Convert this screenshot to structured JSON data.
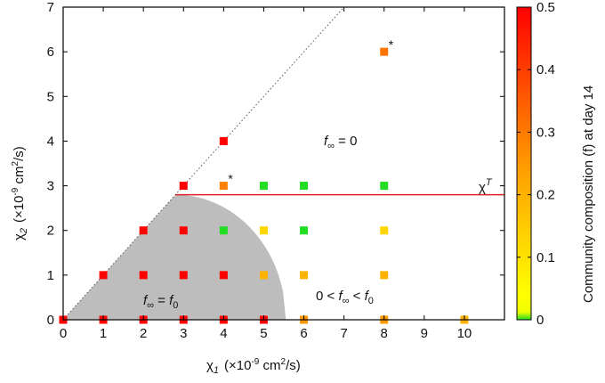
{
  "chart_data": {
    "type": "scatter",
    "xlabel": {
      "symbol": "χ",
      "sub": "1",
      "unit": "(×10",
      "exp": "-9",
      "unit2": " cm",
      "exp2": "2",
      "unit3": "/s)"
    },
    "ylabel": {
      "symbol": "χ",
      "sub": "2",
      "unit": "(×10",
      "exp": "-9",
      "unit2": " cm",
      "exp2": "2",
      "unit3": "/s)"
    },
    "xlim": [
      0,
      11
    ],
    "ylim": [
      0,
      7
    ],
    "xticks": [
      "0",
      "1",
      "2",
      "3",
      "4",
      "5",
      "6",
      "7",
      "8",
      "9",
      "10"
    ],
    "yticks": [
      "0",
      "1",
      "2",
      "3",
      "4",
      "5",
      "6",
      "7"
    ],
    "colorbar": {
      "label": "Community composition (f) at day 14",
      "range": [
        0,
        0.5
      ],
      "ticks": [
        "0",
        "0.1",
        "0.2",
        "0.3",
        "0.4",
        "0.5"
      ],
      "colors": [
        "#22dd22",
        "#ffff00",
        "#ff8800",
        "#ff0000"
      ]
    },
    "threshold_line": {
      "y": 2.8,
      "x_start": 2.8,
      "label_main": "χ",
      "label_sup": "T",
      "color": "#e02020"
    },
    "diagonal_line": {
      "from": [
        0,
        0
      ],
      "to": [
        7,
        7
      ],
      "style": "dotted"
    },
    "shaded_region": "gray",
    "annotations": {
      "region_top": {
        "lhs": "f",
        "sub": "∞",
        "rest": " = 0"
      },
      "region_gray": {
        "lhs": "f",
        "sub": "∞",
        "rest": " = ",
        "rhs": "f",
        "rhs_sub": "0"
      },
      "region_right": {
        "pre": "0 < ",
        "lhs": "f",
        "sub": "∞",
        "mid": " < ",
        "rhs": "f",
        "rhs_sub": "0"
      },
      "star": "*"
    },
    "points": [
      {
        "x": 0,
        "y": 0,
        "f": 0.5
      },
      {
        "x": 1,
        "y": 0,
        "f": 0.5
      },
      {
        "x": 2,
        "y": 0,
        "f": 0.5
      },
      {
        "x": 3,
        "y": 0,
        "f": 0.5
      },
      {
        "x": 4,
        "y": 0,
        "f": 0.5
      },
      {
        "x": 5,
        "y": 0,
        "f": 0.5
      },
      {
        "x": 6,
        "y": 0,
        "f": 0.2
      },
      {
        "x": 8,
        "y": 0,
        "f": 0.2
      },
      {
        "x": 10,
        "y": 0,
        "f": 0.15
      },
      {
        "x": 1,
        "y": 1,
        "f": 0.5
      },
      {
        "x": 2,
        "y": 1,
        "f": 0.5
      },
      {
        "x": 3,
        "y": 1,
        "f": 0.5
      },
      {
        "x": 4,
        "y": 1,
        "f": 0.5
      },
      {
        "x": 5,
        "y": 1,
        "f": 0.15
      },
      {
        "x": 6,
        "y": 1,
        "f": 0.15
      },
      {
        "x": 8,
        "y": 1,
        "f": 0.15
      },
      {
        "x": 2,
        "y": 2,
        "f": 0.5
      },
      {
        "x": 3,
        "y": 2,
        "f": 0.5
      },
      {
        "x": 4,
        "y": 2,
        "f": 0.0
      },
      {
        "x": 5,
        "y": 2,
        "f": 0.08
      },
      {
        "x": 6,
        "y": 2,
        "f": 0.0
      },
      {
        "x": 8,
        "y": 2,
        "f": 0.08
      },
      {
        "x": 3,
        "y": 3,
        "f": 0.5
      },
      {
        "x": 4,
        "y": 3,
        "f": 0.25,
        "star": true
      },
      {
        "x": 5,
        "y": 3,
        "f": 0.0
      },
      {
        "x": 6,
        "y": 3,
        "f": 0.0
      },
      {
        "x": 8,
        "y": 3,
        "f": 0.0
      },
      {
        "x": 4,
        "y": 4,
        "f": 0.5
      },
      {
        "x": 8,
        "y": 6,
        "f": 0.27,
        "star": true
      }
    ]
  }
}
